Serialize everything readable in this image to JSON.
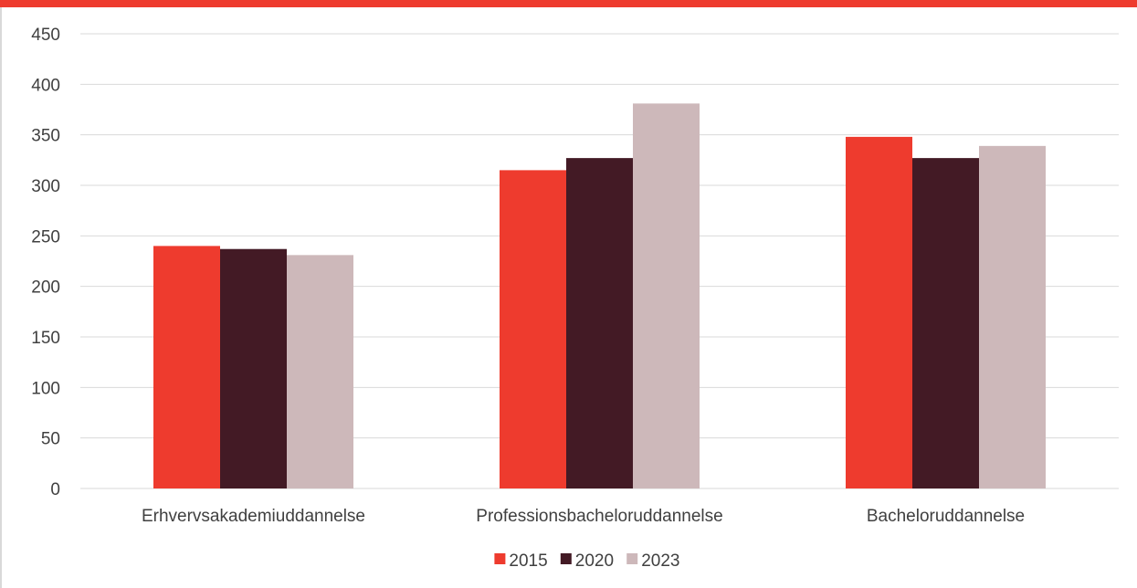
{
  "colors": {
    "accent": "#EE3B2E",
    "series": [
      "#EE3B2E",
      "#431A25",
      "#CDB8BA"
    ],
    "grid": "#d9d9d9",
    "text": "#404040"
  },
  "chart_data": {
    "type": "bar",
    "title": "",
    "xlabel": "",
    "ylabel": "",
    "categories": [
      "Erhvervsakademiuddannelse",
      "Professionsbacheloruddannelse",
      "Bacheloruddannelse"
    ],
    "series": [
      {
        "name": "2015",
        "values": [
          240,
          315,
          348
        ]
      },
      {
        "name": "2020",
        "values": [
          237,
          327,
          327
        ]
      },
      {
        "name": "2023",
        "values": [
          231,
          381,
          339
        ]
      }
    ],
    "ylim": [
      0,
      450
    ],
    "yticks": [
      "0",
      "50",
      "100",
      "150",
      "200",
      "250",
      "300",
      "350",
      "400",
      "450"
    ],
    "grid": true,
    "legend_position": "bottom"
  }
}
